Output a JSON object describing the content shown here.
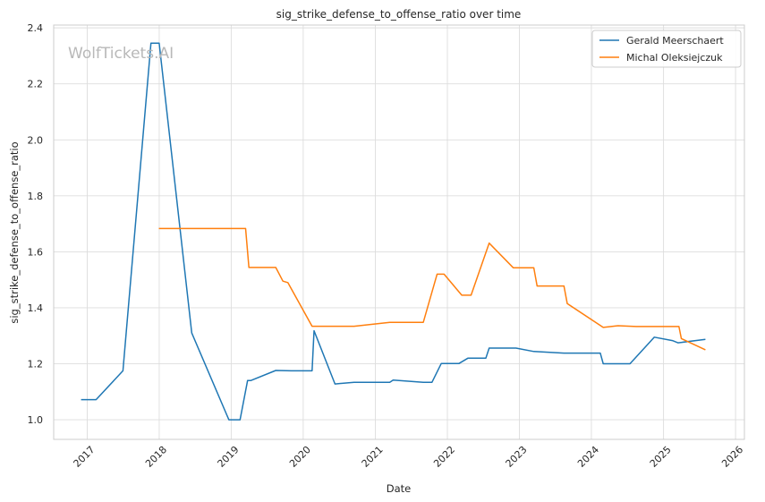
{
  "chart_data": {
    "type": "line",
    "title": "sig_strike_defense_to_offense_ratio over time",
    "xlabel": "Date",
    "ylabel": "sig_strike_defense_to_offense_ratio",
    "watermark": "WolfTickets.AI",
    "grid": true,
    "legend_position": "top-right",
    "xlim": [
      "2016-07-15",
      "2026-02-15"
    ],
    "ylim": [
      0.93,
      2.41
    ],
    "x_ticks": [
      "2017",
      "2018",
      "2019",
      "2020",
      "2021",
      "2022",
      "2023",
      "2024",
      "2025",
      "2026"
    ],
    "y_ticks": [
      "1.0",
      "1.2",
      "1.4",
      "1.6",
      "1.8",
      "2.0",
      "2.2",
      "2.4"
    ],
    "series": [
      {
        "name": "Gerald Meerschaert",
        "color": "#1f77b4",
        "points": [
          [
            "2016-12-01",
            1.072
          ],
          [
            "2017-02-15",
            1.072
          ],
          [
            "2017-07-01",
            1.175
          ],
          [
            "2017-11-20",
            2.345
          ],
          [
            "2018-01-01",
            2.345
          ],
          [
            "2018-06-15",
            1.31
          ],
          [
            "2018-12-20",
            1.0
          ],
          [
            "2019-02-15",
            1.0
          ],
          [
            "2019-03-25",
            1.14
          ],
          [
            "2019-04-10",
            1.14
          ],
          [
            "2019-08-15",
            1.176
          ],
          [
            "2019-11-01",
            1.175
          ],
          [
            "2020-02-15",
            1.175
          ],
          [
            "2020-02-25",
            1.318
          ],
          [
            "2020-06-10",
            1.128
          ],
          [
            "2020-09-15",
            1.134
          ],
          [
            "2021-03-15",
            1.134
          ],
          [
            "2021-04-01",
            1.142
          ],
          [
            "2021-09-01",
            1.134
          ],
          [
            "2021-10-15",
            1.134
          ],
          [
            "2021-12-01",
            1.201
          ],
          [
            "2022-03-01",
            1.201
          ],
          [
            "2022-04-15",
            1.22
          ],
          [
            "2022-07-15",
            1.22
          ],
          [
            "2022-08-01",
            1.256
          ],
          [
            "2022-12-15",
            1.256
          ],
          [
            "2023-03-15",
            1.244
          ],
          [
            "2023-08-15",
            1.238
          ],
          [
            "2024-02-15",
            1.238
          ],
          [
            "2024-03-01",
            1.2
          ],
          [
            "2024-07-15",
            1.2
          ],
          [
            "2024-11-15",
            1.295
          ],
          [
            "2025-02-15",
            1.283
          ],
          [
            "2025-03-15",
            1.275
          ],
          [
            "2025-08-01",
            1.287
          ]
        ]
      },
      {
        "name": "Michal Oleksiejczuk",
        "color": "#ff7f0e",
        "points": [
          [
            "2017-12-30",
            1.683
          ],
          [
            "2019-03-15",
            1.683
          ],
          [
            "2019-04-01",
            1.544
          ],
          [
            "2019-08-15",
            1.544
          ],
          [
            "2019-09-20",
            1.495
          ],
          [
            "2019-10-15",
            1.49
          ],
          [
            "2020-02-15",
            1.334
          ],
          [
            "2020-09-15",
            1.334
          ],
          [
            "2021-03-15",
            1.348
          ],
          [
            "2021-09-01",
            1.348
          ],
          [
            "2021-11-10",
            1.52
          ],
          [
            "2021-12-15",
            1.52
          ],
          [
            "2022-03-15",
            1.445
          ],
          [
            "2022-05-01",
            1.445
          ],
          [
            "2022-08-01",
            1.631
          ],
          [
            "2022-12-01",
            1.543
          ],
          [
            "2023-03-15",
            1.543
          ],
          [
            "2023-04-01",
            1.478
          ],
          [
            "2023-08-15",
            1.478
          ],
          [
            "2023-09-01",
            1.415
          ],
          [
            "2024-03-01",
            1.33
          ],
          [
            "2024-05-15",
            1.336
          ],
          [
            "2024-08-15",
            1.333
          ],
          [
            "2025-03-20",
            1.333
          ],
          [
            "2025-04-01",
            1.29
          ],
          [
            "2025-08-01",
            1.25
          ]
        ]
      }
    ]
  }
}
